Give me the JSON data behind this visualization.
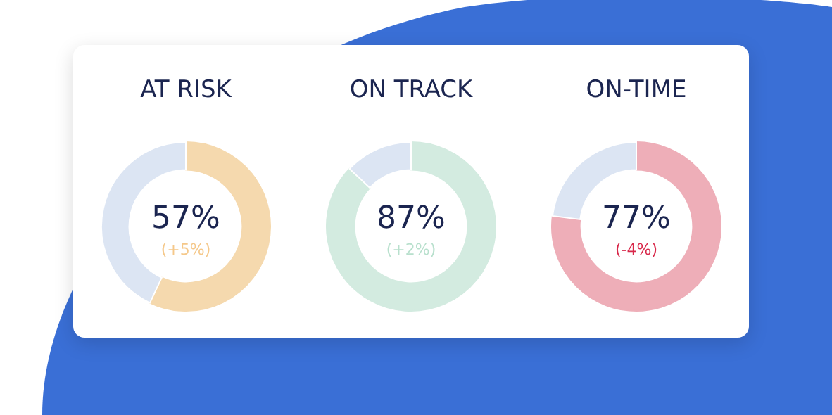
{
  "chart_data": [
    {
      "type": "donut",
      "title": "AT RISK",
      "categories": [
        null,
        null
      ],
      "values": [
        57,
        43
      ],
      "colors": [
        "#f5d9ae",
        "#dce5f3"
      ],
      "annotations": [
        "57%",
        "(+5%)"
      ]
    },
    {
      "type": "donut",
      "title": "ON TRACK",
      "categories": [
        null,
        null
      ],
      "values": [
        87,
        13
      ],
      "colors": [
        "#d3ebe0",
        "#dce5f3"
      ],
      "annotations": [
        "87%",
        "(+2%)"
      ]
    },
    {
      "type": "donut",
      "title": "ON-TIME",
      "categories": [
        null,
        null
      ],
      "values": [
        77,
        23
      ],
      "colors": [
        "#eeaeb8",
        "#dce5f3"
      ],
      "annotations": [
        "77%",
        "(-4%)"
      ]
    }
  ]
}
